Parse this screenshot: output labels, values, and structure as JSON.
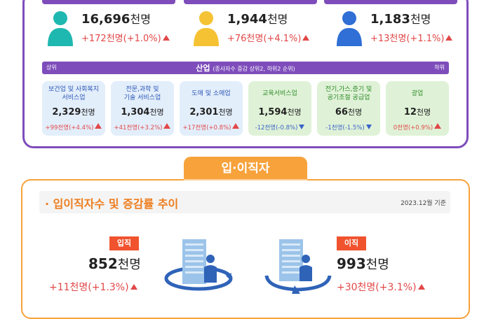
{
  "top_stats": [
    {
      "value": "16,696",
      "unit": "천명",
      "change": "+172천명(+1.0%)",
      "color": "#1fb8b0"
    },
    {
      "value": "1,944",
      "unit": "천명",
      "change": "+76천명(+4.1%)",
      "color": "#f5c234"
    },
    {
      "value": "1,183",
      "unit": "천명",
      "change": "+13천명(+1.1%)",
      "color": "#2f6fd6"
    }
  ],
  "industry": {
    "left": "상위",
    "title": "산업",
    "note": "(종사자수 증감 상위2, 하위2 순위)",
    "right": "하위"
  },
  "cards": [
    {
      "name1": "보건업 및 사회복지",
      "name2": "서비스업",
      "value": "2,329",
      "unit": "천명",
      "change": "+99천명(+4.4%)",
      "dir": "up"
    },
    {
      "name1": "전문,과학 및",
      "name2": "기술 서비스업",
      "value": "1,304",
      "unit": "천명",
      "change": "+41천명(+3.2%)",
      "dir": "up"
    },
    {
      "name1": "도매 및 소매업",
      "name2": "",
      "value": "2,301",
      "unit": "천명",
      "change": "+17천명(+0.8%)",
      "dir": "up"
    },
    {
      "name1": "교육서비스업",
      "name2": "",
      "value": "1,594",
      "unit": "천명",
      "change": "-12천명(-0.8%)",
      "dir": "down"
    },
    {
      "name1": "전기,가스,증기 및",
      "name2": "공기조절 공급업",
      "value": "66",
      "unit": "천명",
      "change": "-1천명(-1.5%)",
      "dir": "down"
    },
    {
      "name1": "광업",
      "name2": "",
      "value": "12",
      "unit": "천명",
      "change": "0천명(+0.9%)",
      "dir": "up"
    }
  ],
  "section_tab": "입·이직자",
  "subtitle": {
    "title": "· 입이직자수 및 증감률 추이",
    "date": "2023.12월 기준"
  },
  "hire": {
    "label": "입직",
    "value": "852",
    "unit": "천명",
    "change": "+11천명(+1.3%)"
  },
  "sep": {
    "label": "이직",
    "value": "993",
    "unit": "천명",
    "change": "+30천명(+3.1%)"
  }
}
